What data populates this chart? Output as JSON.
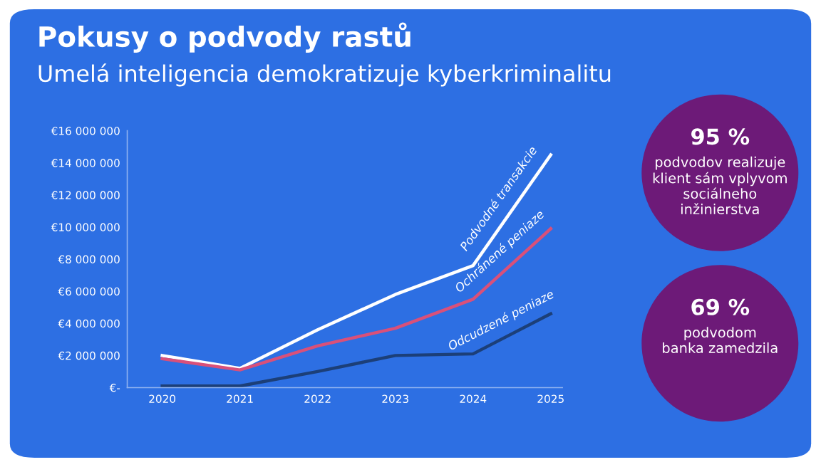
{
  "chart_data": [
    {
      "type": "line",
      "title": "Pokusy o podvody rastů",
      "subtitle": "Umelá inteligencia demokratizuje kyberkriminalitu",
      "x": [
        2020,
        2021,
        2022,
        2023,
        2024,
        2025
      ],
      "xlim": [
        2019.55,
        2025.15
      ],
      "xticks": [
        2020,
        2021,
        2022,
        2023,
        2024,
        2025
      ],
      "ylim": [
        0,
        16000000
      ],
      "yticks": [
        {
          "value": 0,
          "label": "€-"
        },
        {
          "value": 2000000,
          "label": "€2 000 000"
        },
        {
          "value": 4000000,
          "label": "€4 000 000"
        },
        {
          "value": 6000000,
          "label": "€6 000 000"
        },
        {
          "value": 8000000,
          "label": "€8 000 000"
        },
        {
          "value": 10000000,
          "label": "€10 000 000"
        },
        {
          "value": 12000000,
          "label": "€12 000 000"
        },
        {
          "value": 14000000,
          "label": "€14 000 000"
        },
        {
          "value": 16000000,
          "label": "€16 000 000"
        }
      ],
      "grid": false,
      "legend": false,
      "marker": "none",
      "line_style": "solid",
      "series": [
        {
          "name": "Podvodné transakcie",
          "color": "#ffffff",
          "values": [
            2000000,
            1200000,
            3600000,
            5800000,
            7600000,
            14500000
          ]
        },
        {
          "name": "Ochránené peniaze",
          "color": "#d9507a",
          "values": [
            1800000,
            1100000,
            2600000,
            3700000,
            5500000,
            9900000
          ]
        },
        {
          "name": "Odcudzené peniaze",
          "color": "#1c3f78",
          "values": [
            100000,
            100000,
            1000000,
            2000000,
            2100000,
            4600000
          ]
        }
      ]
    },
    {
      "type": "other",
      "annotations": [
        "95 %\npodvodov realizuje\nklient sám vplyvom\nsociálneho\ninžinierstva",
        "69 %\npodvodom\nbanka zamedzila"
      ]
    }
  ]
}
